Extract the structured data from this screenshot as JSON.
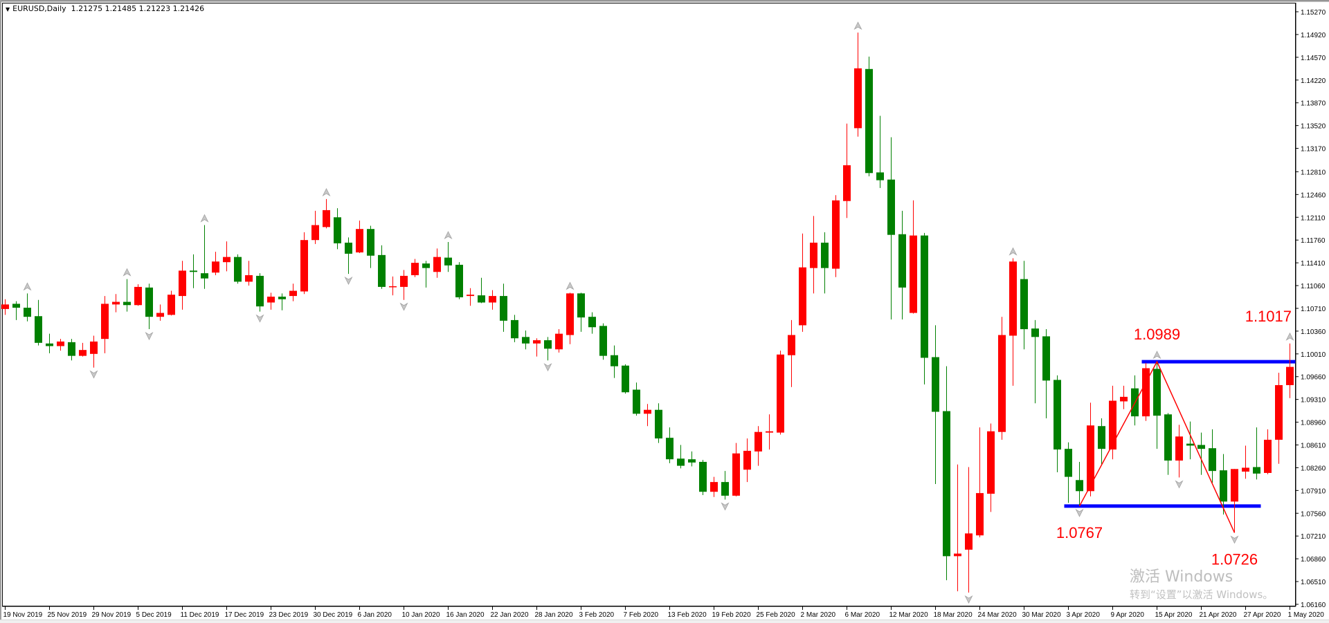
{
  "header": {
    "symbol_timeframe": "EURUSD,Daily",
    "ohlc": "1.21275 1.21485 1.21223 1.21426"
  },
  "watermark": {
    "line1": "激活 Windows",
    "line2": "转到“设置”以激活 Windows。"
  },
  "colors": {
    "bull": "#ff0000",
    "bear": "#008000",
    "level_line": "#0000ff",
    "zigzag": "#ff0000",
    "fractal": "#a0a0a0",
    "annotation": "#ff0000"
  },
  "chart_data": {
    "type": "candlestick",
    "title": "",
    "y_ticks": [
      "1.15270",
      "1.14920",
      "1.14570",
      "1.14220",
      "1.13870",
      "1.13520",
      "1.13170",
      "1.12810",
      "1.12460",
      "1.12110",
      "1.11760",
      "1.11410",
      "1.11060",
      "1.10710",
      "1.10360",
      "1.10010",
      "1.09660",
      "1.09310",
      "1.08960",
      "1.08610",
      "1.08260",
      "1.07910",
      "1.07560",
      "1.07210",
      "1.06860",
      "1.06510",
      "1.06160"
    ],
    "ylim": [
      1.0616,
      1.1527
    ],
    "x_labels": [
      "19 Nov 2019",
      "25 Nov 2019",
      "29 Nov 2019",
      "5 Dec 2019",
      "11 Dec 2019",
      "17 Dec 2019",
      "23 Dec 2019",
      "30 Dec 2019",
      "6 Jan 2020",
      "10 Jan 2020",
      "16 Jan 2020",
      "22 Jan 2020",
      "28 Jan 2020",
      "3 Feb 2020",
      "7 Feb 2020",
      "13 Feb 2020",
      "19 Feb 2020",
      "25 Feb 2020",
      "2 Mar 2020",
      "6 Mar 2020",
      "12 Mar 2020",
      "18 Mar 2020",
      "24 Mar 2020",
      "30 Mar 2020",
      "3 Apr 2020",
      "9 Apr 2020",
      "15 Apr 2020",
      "21 Apr 2020",
      "27 Apr 2020",
      "1 May 2020"
    ],
    "x_label_every_bars": 4,
    "ohlc": [
      [
        1.107,
        1.1085,
        1.1061,
        1.1077
      ],
      [
        1.1078,
        1.1082,
        1.1053,
        1.1072
      ],
      [
        1.1072,
        1.1094,
        1.1051,
        1.1058
      ],
      [
        1.1059,
        1.1084,
        1.1014,
        1.1018
      ],
      [
        1.1017,
        1.1032,
        1.1002,
        1.1013
      ],
      [
        1.1013,
        1.1024,
        1.1006,
        1.102
      ],
      [
        1.1019,
        1.1024,
        1.0991,
        1.0998
      ],
      [
        1.0998,
        1.1018,
        1.0997,
        1.1007
      ],
      [
        1.1001,
        1.1029,
        1.098,
        1.102
      ],
      [
        1.1024,
        1.109,
        1.1002,
        1.1078
      ],
      [
        1.1077,
        1.1093,
        1.1065,
        1.1081
      ],
      [
        1.1081,
        1.1116,
        1.1066,
        1.1076
      ],
      [
        1.1076,
        1.1108,
        1.1075,
        1.1104
      ],
      [
        1.1103,
        1.1109,
        1.1039,
        1.1058
      ],
      [
        1.1058,
        1.1077,
        1.1052,
        1.1064
      ],
      [
        1.1061,
        1.1098,
        1.106,
        1.1092
      ],
      [
        1.109,
        1.1144,
        1.1069,
        1.1129
      ],
      [
        1.1129,
        1.1154,
        1.1102,
        1.1127
      ],
      [
        1.1125,
        1.1199,
        1.1101,
        1.1117
      ],
      [
        1.1126,
        1.1158,
        1.1122,
        1.1143
      ],
      [
        1.1142,
        1.1174,
        1.1128,
        1.115
      ],
      [
        1.115,
        1.1154,
        1.1109,
        1.1112
      ],
      [
        1.1112,
        1.1144,
        1.1106,
        1.1122
      ],
      [
        1.1121,
        1.1125,
        1.1066,
        1.1074
      ],
      [
        1.108,
        1.1095,
        1.1069,
        1.1089
      ],
      [
        1.1089,
        1.1094,
        1.1068,
        1.1085
      ],
      [
        1.109,
        1.1109,
        1.1082,
        1.1098
      ],
      [
        1.1097,
        1.1188,
        1.1093,
        1.1176
      ],
      [
        1.1176,
        1.1221,
        1.117,
        1.1199
      ],
      [
        1.1196,
        1.1239,
        1.1194,
        1.1222
      ],
      [
        1.1211,
        1.1225,
        1.1162,
        1.1171
      ],
      [
        1.1172,
        1.118,
        1.1124,
        1.1155
      ],
      [
        1.1157,
        1.1206,
        1.1156,
        1.1193
      ],
      [
        1.1193,
        1.1198,
        1.1133,
        1.1152
      ],
      [
        1.1153,
        1.1168,
        1.1101,
        1.1104
      ],
      [
        1.1104,
        1.112,
        1.1091,
        1.1105
      ],
      [
        1.1104,
        1.113,
        1.1084,
        1.1121
      ],
      [
        1.1122,
        1.1147,
        1.1119,
        1.1141
      ],
      [
        1.114,
        1.1144,
        1.1103,
        1.1133
      ],
      [
        1.1127,
        1.1163,
        1.1118,
        1.115
      ],
      [
        1.1149,
        1.1173,
        1.1127,
        1.1137
      ],
      [
        1.1138,
        1.1142,
        1.1085,
        1.1088
      ],
      [
        1.109,
        1.1102,
        1.1075,
        1.1092
      ],
      [
        1.1091,
        1.1118,
        1.1079,
        1.108
      ],
      [
        1.108,
        1.1099,
        1.1069,
        1.109
      ],
      [
        1.109,
        1.1109,
        1.1035,
        1.1052
      ],
      [
        1.1053,
        1.1061,
        1.1019,
        1.1025
      ],
      [
        1.1027,
        1.1037,
        1.1008,
        1.1017
      ],
      [
        1.1017,
        1.1025,
        1.0997,
        1.1022
      ],
      [
        1.1022,
        1.1027,
        1.0991,
        1.1009
      ],
      [
        1.1008,
        1.1039,
        1.1003,
        1.1032
      ],
      [
        1.103,
        1.1095,
        1.1016,
        1.1094
      ],
      [
        1.1094,
        1.1095,
        1.1035,
        1.1057
      ],
      [
        1.1058,
        1.1065,
        1.1032,
        1.1042
      ],
      [
        1.1044,
        1.1048,
        1.0992,
        1.0998
      ],
      [
        1.0999,
        1.1014,
        1.0964,
        1.0982
      ],
      [
        1.0983,
        1.0985,
        1.094,
        1.0942
      ],
      [
        1.0946,
        1.0957,
        1.0906,
        1.0909
      ],
      [
        1.0909,
        1.0924,
        1.089,
        1.0915
      ],
      [
        1.0915,
        1.0925,
        1.0864,
        1.0871
      ],
      [
        1.0872,
        1.0888,
        1.0833,
        1.0839
      ],
      [
        1.084,
        1.0861,
        1.0825,
        1.0829
      ],
      [
        1.0839,
        1.0851,
        1.0828,
        1.0834
      ],
      [
        1.0835,
        1.0838,
        1.0784,
        1.0789
      ],
      [
        1.0789,
        1.0812,
        1.0781,
        1.0804
      ],
      [
        1.0804,
        1.0821,
        1.0777,
        1.0783
      ],
      [
        1.0783,
        1.0864,
        1.0782,
        1.0848
      ],
      [
        1.0823,
        1.0871,
        1.0804,
        1.0852
      ],
      [
        1.0851,
        1.089,
        1.0829,
        1.0881
      ],
      [
        1.088,
        1.0908,
        1.0854,
        1.0882
      ],
      [
        1.088,
        1.1006,
        1.0877,
        1.1
      ],
      [
        1.0999,
        1.1053,
        1.095,
        1.103
      ],
      [
        1.1045,
        1.1186,
        1.1035,
        1.1134
      ],
      [
        1.1133,
        1.1213,
        1.1094,
        1.1172
      ],
      [
        1.1172,
        1.1188,
        1.1094,
        1.1133
      ],
      [
        1.1132,
        1.1245,
        1.1119,
        1.1237
      ],
      [
        1.1236,
        1.1355,
        1.121,
        1.1291
      ],
      [
        1.1348,
        1.1495,
        1.1335,
        1.144
      ],
      [
        1.1439,
        1.1458,
        1.1274,
        1.1279
      ],
      [
        1.128,
        1.1367,
        1.1256,
        1.1268
      ],
      [
        1.1269,
        1.1334,
        1.1054,
        1.1184
      ],
      [
        1.1185,
        1.1221,
        1.1054,
        1.1103
      ],
      [
        1.1064,
        1.1237,
        1.1063,
        1.1183
      ],
      [
        1.1183,
        1.1187,
        1.0954,
        1.0995
      ],
      [
        1.0996,
        1.1045,
        1.0801,
        1.0912
      ],
      [
        1.0913,
        1.0982,
        1.0653,
        1.069
      ],
      [
        1.069,
        1.0831,
        1.0636,
        1.0694
      ],
      [
        1.07,
        1.0827,
        1.0634,
        1.0725
      ],
      [
        1.0722,
        1.0888,
        1.0719,
        1.0787
      ],
      [
        1.0786,
        1.0894,
        1.0758,
        1.0882
      ],
      [
        1.0881,
        1.1058,
        1.0869,
        1.103
      ],
      [
        1.1029,
        1.1148,
        1.0952,
        1.1143
      ],
      [
        1.1116,
        1.1144,
        1.1008,
        1.1039
      ],
      [
        1.104,
        1.1053,
        1.0925,
        1.1027
      ],
      [
        1.1028,
        1.1039,
        1.0902,
        1.096
      ],
      [
        1.0961,
        1.0968,
        1.0819,
        1.0854
      ],
      [
        1.0855,
        1.0865,
        1.0772,
        1.0812
      ],
      [
        1.0807,
        1.0835,
        1.0767,
        1.079
      ],
      [
        1.079,
        1.0926,
        1.0782,
        1.0891
      ],
      [
        1.089,
        1.0902,
        1.0831,
        1.0855
      ],
      [
        1.0854,
        1.0952,
        1.0839,
        1.0929
      ],
      [
        1.0928,
        1.0952,
        1.0916,
        1.0935
      ],
      [
        1.0948,
        1.0968,
        1.0891,
        1.0905
      ],
      [
        1.0905,
        1.0987,
        1.0898,
        1.0979
      ],
      [
        1.0978,
        1.0989,
        1.0855,
        1.0906
      ],
      [
        1.0908,
        1.091,
        1.0815,
        1.0837
      ],
      [
        1.0837,
        1.0892,
        1.0811,
        1.0874
      ],
      [
        1.0863,
        1.0897,
        1.0839,
        1.086
      ],
      [
        1.0861,
        1.088,
        1.0815,
        1.0855
      ],
      [
        1.0856,
        1.0885,
        1.0803,
        1.0821
      ],
      [
        1.0822,
        1.0847,
        1.0754,
        1.0774
      ],
      [
        1.0774,
        1.0824,
        1.0726,
        1.0824
      ],
      [
        1.082,
        1.086,
        1.0809,
        1.0826
      ],
      [
        1.0827,
        1.0888,
        1.0808,
        1.0817
      ],
      [
        1.0818,
        1.0885,
        1.0816,
        1.0869
      ],
      [
        1.0869,
        1.0972,
        1.0832,
        1.0953
      ],
      [
        1.0953,
        1.1017,
        1.0933,
        1.0981
      ]
    ],
    "fractals_up": [
      2,
      11,
      18,
      29,
      40,
      51,
      77,
      91,
      104,
      116
    ],
    "fractals_down": [
      8,
      13,
      23,
      31,
      36,
      49,
      65,
      87,
      97,
      106,
      111
    ],
    "horizontal_levels": [
      {
        "price": 1.0989,
        "from_bar": 103,
        "to_bar": "end"
      },
      {
        "price": 1.0767,
        "from_bar": 96,
        "to_bar": 113
      }
    ],
    "zigzag": [
      [
        97,
        1.0767
      ],
      [
        104,
        1.0989
      ],
      [
        111,
        1.0726
      ]
    ],
    "annotations": [
      {
        "text": "1.0767",
        "bar": 97,
        "price": 1.0767,
        "position": "below"
      },
      {
        "text": "1.0989",
        "bar": 104,
        "price": 1.0989,
        "position": "above"
      },
      {
        "text": "1.0726",
        "bar": 111,
        "price": 1.0726,
        "position": "below"
      },
      {
        "text": "1.1017",
        "bar": 116,
        "price": 1.1017,
        "position": "above"
      }
    ]
  }
}
